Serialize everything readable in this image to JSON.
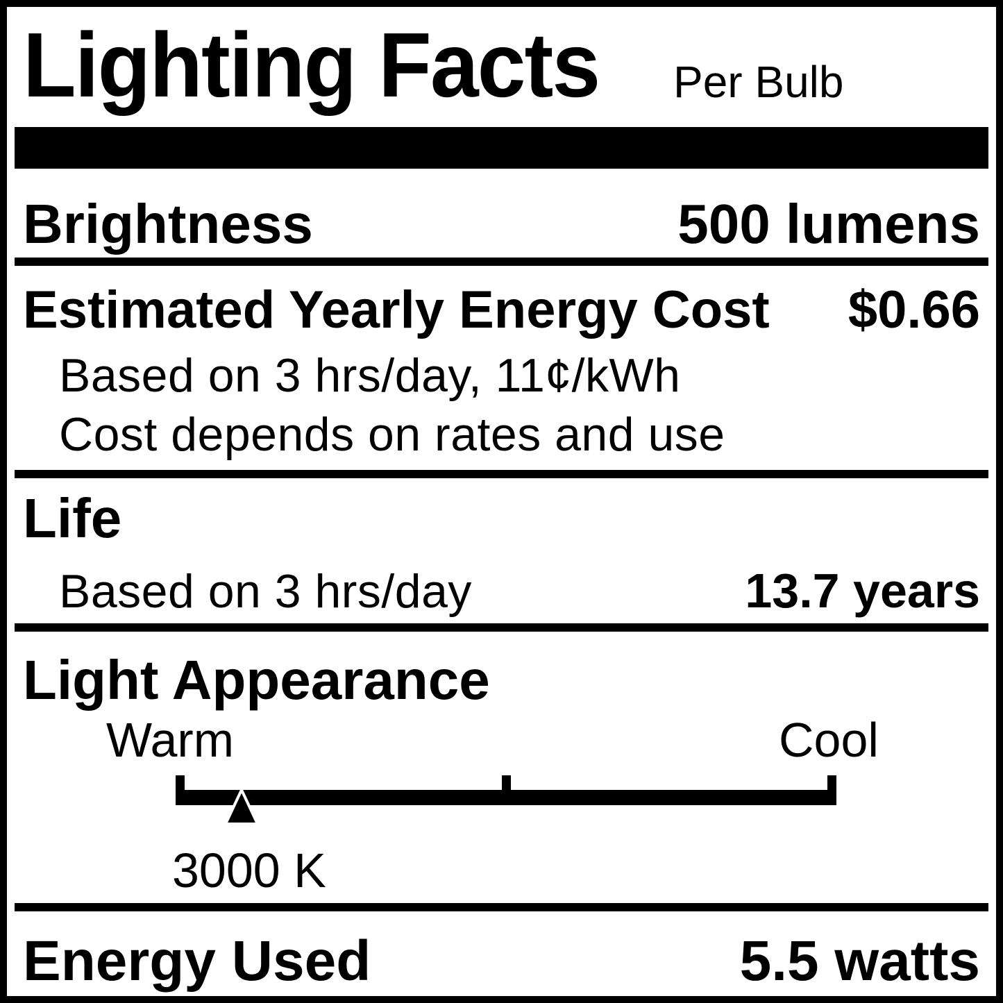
{
  "title": {
    "main": "Lighting Facts",
    "qualifier": "Per Bulb"
  },
  "brightness": {
    "label": "Brightness",
    "value": "500 lumens"
  },
  "energy_cost": {
    "label": "Estimated Yearly Energy Cost",
    "value": "$0.66",
    "basis_note": "Based on 3 hrs/day, 11¢/kWh",
    "disclaimer_note": "Cost depends on rates and use"
  },
  "life": {
    "label": "Life",
    "basis_note": "Based on 3 hrs/day",
    "value": "13.7 years"
  },
  "light_appearance": {
    "label": "Light Appearance",
    "warm_label": "Warm",
    "cool_label": "Cool",
    "kelvin_value": "3000 K",
    "pointer_position_pct": 10
  },
  "energy_used": {
    "label": "Energy Used",
    "value": "5.5 watts"
  },
  "colors": {
    "foreground": "#000000",
    "background": "#ffffff"
  }
}
